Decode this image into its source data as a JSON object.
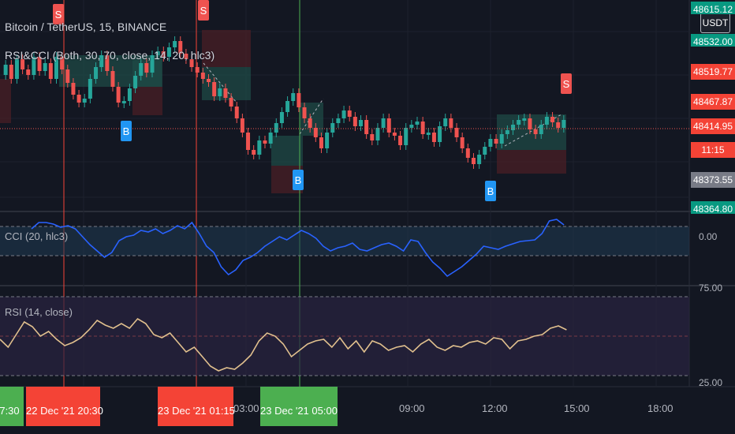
{
  "chart": {
    "title": "Bitcoin / TetherUS, 15, BINANCE",
    "indicator_legend": "RSI&CCI (Both, 30, 70, close, 14, 20, hlc3)",
    "currency_button": "USDT"
  },
  "price_axis": {
    "labels": [
      {
        "text": "48615.12",
        "kind": "teal",
        "partial": true
      },
      {
        "text": "48532.00",
        "kind": "teal",
        "partial": true
      },
      {
        "text": "48519.77",
        "kind": "red"
      },
      {
        "text": "48467.87",
        "kind": "red"
      },
      {
        "text": "48414.95",
        "kind": "red"
      },
      {
        "text": "11:15",
        "kind": "red"
      },
      {
        "text": "48373.55",
        "kind": "grey"
      },
      {
        "text": "48364.80",
        "kind": "teal",
        "partial": true
      }
    ]
  },
  "cci_pane": {
    "legend": "CCI (20, hlc3)",
    "axis_label": "0.00",
    "line_color": "#2962ff"
  },
  "rsi_pane": {
    "legend": "RSI (14, close)",
    "axis_top": "75.00",
    "axis_bottom": "25.00",
    "line_color": "#e1c08e"
  },
  "time_axis": {
    "highlight_labels": [
      {
        "text": "7:30",
        "kind": "green"
      },
      {
        "text": "22 Dec '21   20:30",
        "kind": "red"
      },
      {
        "text": "23 Dec '21   01:15",
        "kind": "red"
      },
      {
        "text": "23 Dec '21   05:00",
        "kind": "green"
      }
    ],
    "ticks": [
      "03:00",
      "09:00",
      "12:00",
      "15:00",
      "18:00"
    ]
  },
  "signals": [
    {
      "label": "S",
      "type": "sell"
    },
    {
      "label": "S",
      "type": "sell"
    },
    {
      "label": "B",
      "type": "buy"
    },
    {
      "label": "B",
      "type": "buy"
    },
    {
      "label": "S",
      "type": "sell"
    },
    {
      "label": "B",
      "type": "buy"
    }
  ],
  "colors": {
    "background": "#131722",
    "up_candle": "#26a69a",
    "down_candle": "#ef5350",
    "buy_marker": "#2196f3",
    "sell_marker": "#ef5350",
    "green_label": "#4caf50",
    "red_label": "#f44336",
    "teal_label": "#089981"
  }
}
